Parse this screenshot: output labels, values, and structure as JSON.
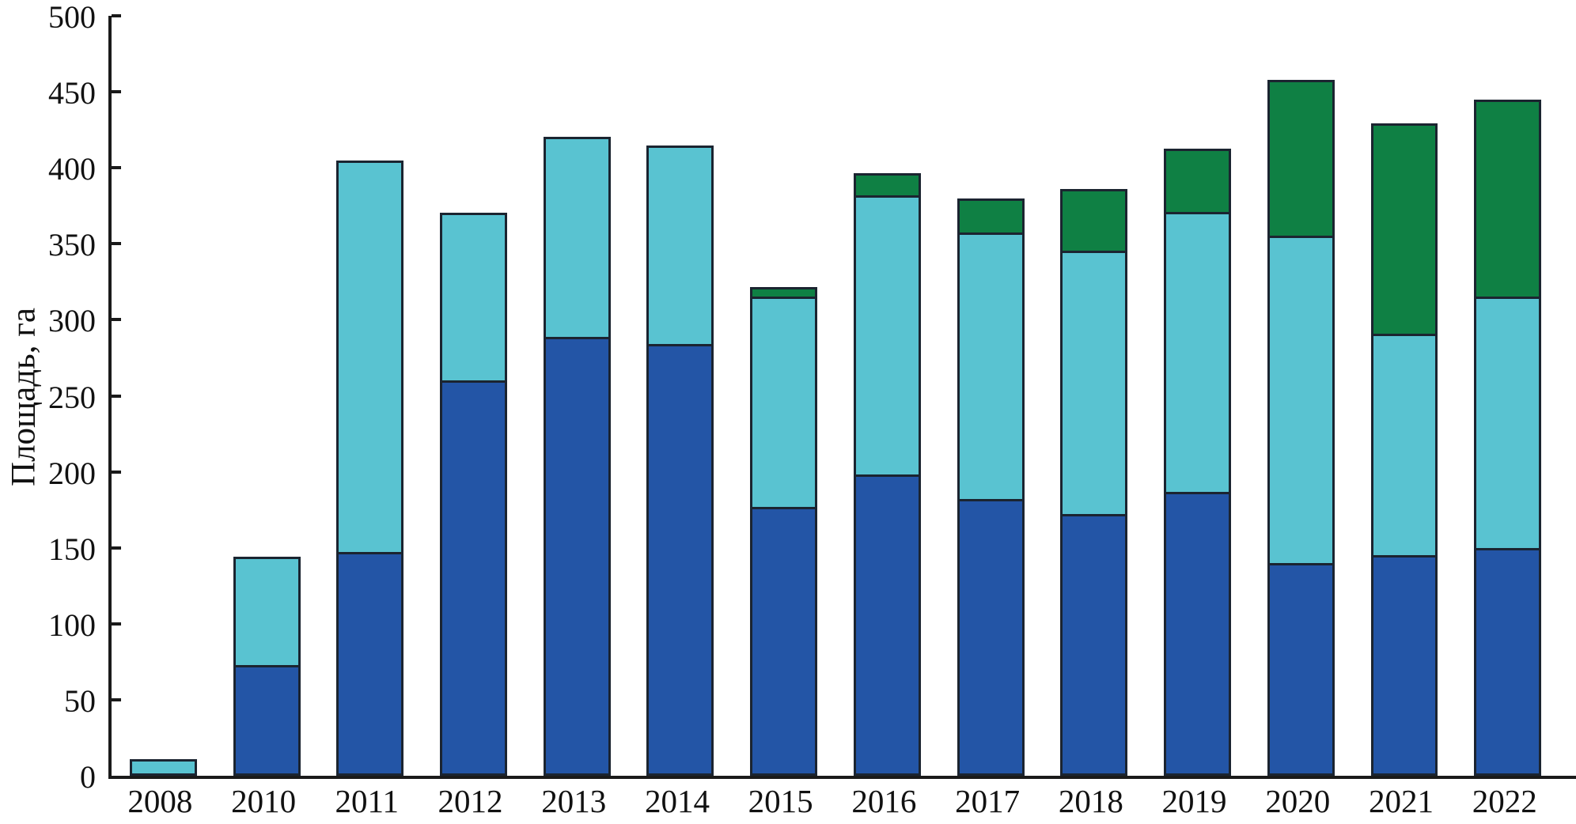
{
  "y_axis": {
    "title": "Площадь, га",
    "tick_labels": [
      "0",
      "50",
      "100",
      "150",
      "200",
      "250",
      "300",
      "350",
      "400",
      "450",
      "500"
    ]
  },
  "chart_data": {
    "type": "bar",
    "stacked": true,
    "title": "",
    "xlabel": "",
    "ylabel": "Площадь, га",
    "categories": [
      "2008",
      "2010",
      "2011",
      "2012",
      "2013",
      "2014",
      "2015",
      "2016",
      "2017",
      "2018",
      "2019",
      "2020",
      "2021",
      "2022"
    ],
    "series": [
      {
        "name": "bottom-segment",
        "color": "#2355a6",
        "values": [
          0,
          73,
          147,
          260,
          289,
          284,
          177,
          198,
          182,
          172,
          187,
          140,
          145,
          150
        ]
      },
      {
        "name": "middle-segment",
        "color": "#59c3d1",
        "values": [
          11,
          73,
          259,
          112,
          133,
          132,
          140,
          185,
          177,
          175,
          186,
          217,
          147,
          167
        ]
      },
      {
        "name": "top-segment",
        "color": "#0f8044",
        "values": [
          0,
          0,
          0,
          0,
          0,
          0,
          8,
          16,
          24,
          42,
          43,
          104,
          140,
          131
        ]
      }
    ],
    "totals": [
      11,
      146,
      406,
      372,
      422,
      416,
      325,
      399,
      383,
      389,
      416,
      461,
      432,
      448
    ],
    "ylim": [
      0,
      500
    ],
    "yticks": [
      0,
      50,
      100,
      150,
      200,
      250,
      300,
      350,
      400,
      450,
      500
    ],
    "grid": false,
    "legend": "none",
    "outline_color": "#1b2430",
    "axis_color": "#1a1a1a"
  }
}
